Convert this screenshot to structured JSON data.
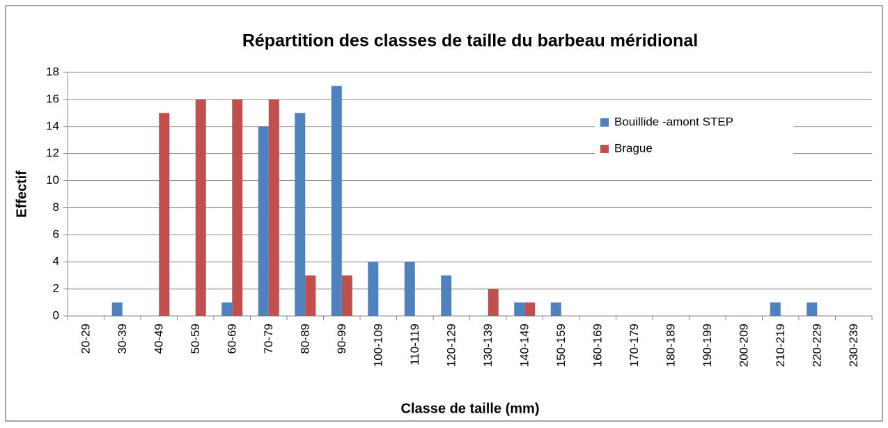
{
  "chart_data": {
    "type": "bar",
    "title": "Répartition des classes de taille du barbeau méridional",
    "xlabel": "Classe de taille (mm)",
    "ylabel": "Effectif",
    "categories": [
      "20-29",
      "30-39",
      "40-49",
      "50-59",
      "60-69",
      "70-79",
      "80-89",
      "90-99",
      "100-109",
      "110-119",
      "120-129",
      "130-139",
      "140-149",
      "150-159",
      "160-169",
      "170-179",
      "180-189",
      "190-199",
      "200-209",
      "210-219",
      "220-229",
      "230-239"
    ],
    "series": [
      {
        "name": "Bouillide -amont STEP",
        "color": "#4f81bd",
        "values": [
          0,
          1,
          0,
          0,
          1,
          14,
          15,
          17,
          4,
          4,
          3,
          0,
          1,
          1,
          0,
          0,
          0,
          0,
          0,
          1,
          1,
          0
        ]
      },
      {
        "name": "Brague",
        "color": "#c0504d",
        "values": [
          0,
          0,
          15,
          16,
          16,
          16,
          3,
          3,
          0,
          0,
          0,
          2,
          1,
          0,
          0,
          0,
          0,
          0,
          0,
          0,
          0,
          0
        ]
      }
    ],
    "ylim": [
      0,
      18
    ],
    "yticks": [
      0,
      2,
      4,
      6,
      8,
      10,
      12,
      14,
      16,
      18
    ],
    "grid": true,
    "legend": "right"
  }
}
